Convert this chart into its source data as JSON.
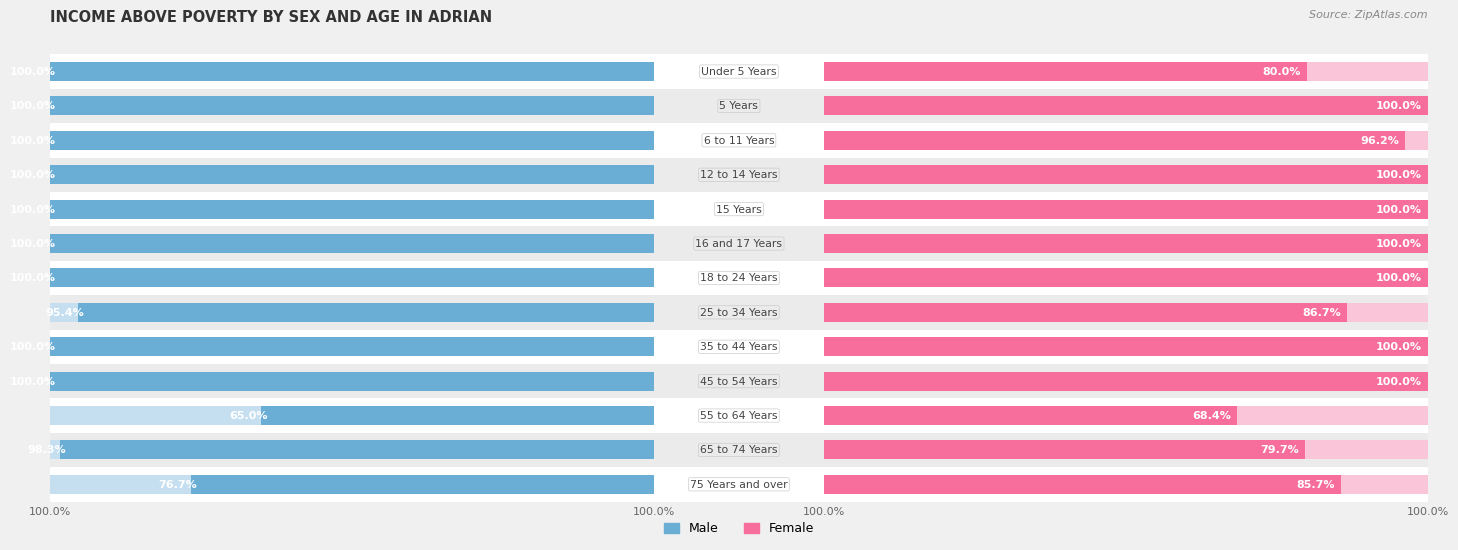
{
  "title": "INCOME ABOVE POVERTY BY SEX AND AGE IN ADRIAN",
  "source": "Source: ZipAtlas.com",
  "categories": [
    "Under 5 Years",
    "5 Years",
    "6 to 11 Years",
    "12 to 14 Years",
    "15 Years",
    "16 and 17 Years",
    "18 to 24 Years",
    "25 to 34 Years",
    "35 to 44 Years",
    "45 to 54 Years",
    "55 to 64 Years",
    "65 to 74 Years",
    "75 Years and over"
  ],
  "male_values": [
    100.0,
    100.0,
    100.0,
    100.0,
    100.0,
    100.0,
    100.0,
    95.4,
    100.0,
    100.0,
    65.0,
    98.3,
    76.7
  ],
  "female_values": [
    80.0,
    100.0,
    96.2,
    100.0,
    100.0,
    100.0,
    100.0,
    86.7,
    100.0,
    100.0,
    68.4,
    79.7,
    85.7
  ],
  "male_color": "#6aadd5",
  "male_bg_color": "#c5dff0",
  "female_color": "#f76d9b",
  "female_bg_color": "#fac5d8",
  "male_label": "Male",
  "female_label": "Female",
  "bg_color": "#f0f0f0",
  "row_color_even": "#ffffff",
  "row_color_odd": "#ebebeb",
  "xlim": 100,
  "bar_height": 0.55,
  "label_fontsize": 8.0,
  "cat_fontsize": 7.8,
  "title_fontsize": 10.5,
  "source_fontsize": 8.0,
  "value_color": "white"
}
